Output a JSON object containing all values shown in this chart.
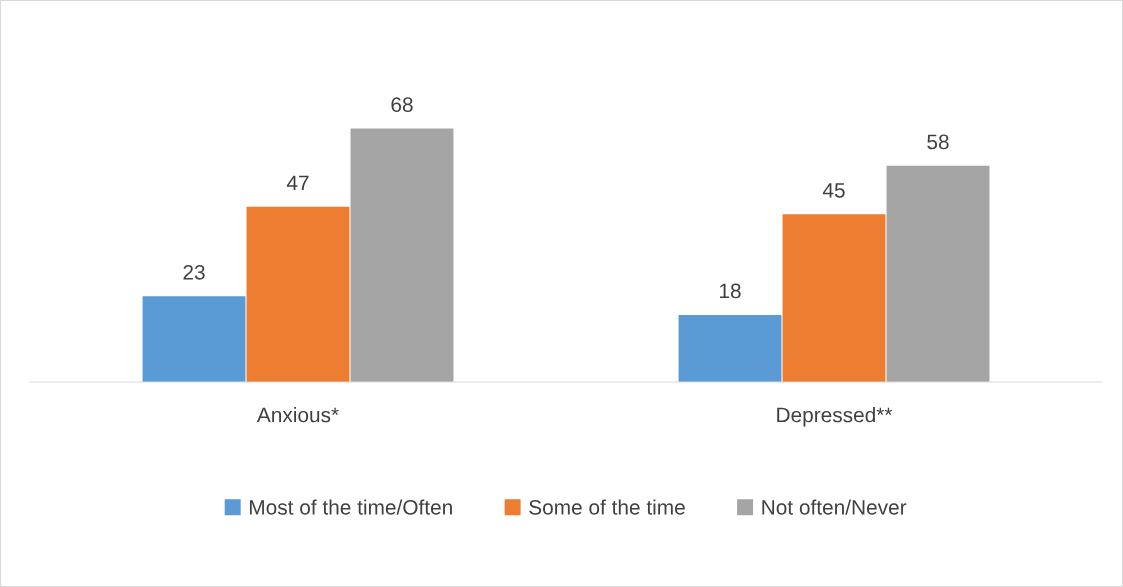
{
  "chart_data": {
    "type": "bar",
    "categories": [
      "Anxious*",
      "Depressed**"
    ],
    "series": [
      {
        "name": "Most of the time/Often",
        "color": "#5b9bd5",
        "values": [
          23,
          18
        ]
      },
      {
        "name": "Some of the time",
        "color": "#ed7d31",
        "values": [
          47,
          45
        ]
      },
      {
        "name": "Not often/Never",
        "color": "#a5a5a5",
        "values": [
          68,
          58
        ]
      }
    ],
    "data_labels": true,
    "legend": "bottom",
    "grid": false
  }
}
